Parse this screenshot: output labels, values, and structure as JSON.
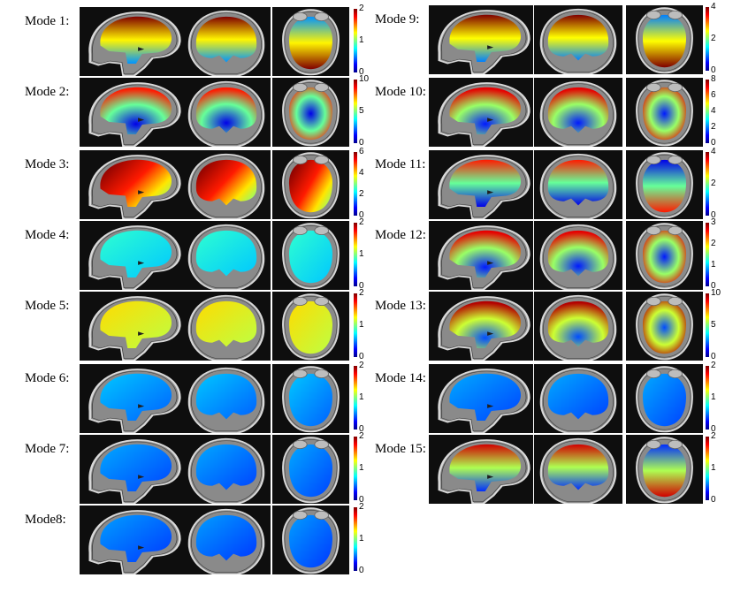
{
  "colormap": {
    "name": "jet",
    "stops": [
      "#00008f",
      "#0000ff",
      "#0080ff",
      "#00ffff",
      "#80ff80",
      "#ffff00",
      "#ff8000",
      "#ff0000",
      "#800000"
    ]
  },
  "modes": [
    {
      "label": "Mode 1:",
      "level": 0.72,
      "pattern": "radial-up",
      "ticks": [
        "2",
        "1",
        "0"
      ]
    },
    {
      "label": "Mode 2:",
      "level": 0.55,
      "pattern": "radial",
      "ticks": [
        "10",
        "5",
        "0"
      ]
    },
    {
      "label": "Mode 3:",
      "level": 0.85,
      "pattern": "diagonal",
      "ticks": [
        "6",
        "4",
        "2",
        "0"
      ]
    },
    {
      "label": "Mode 4:",
      "level": 0.38,
      "pattern": "flat",
      "ticks": [
        "2",
        "1",
        "0"
      ]
    },
    {
      "label": "Mode 5:",
      "level": 0.62,
      "pattern": "flat",
      "ticks": [
        "2",
        "1",
        "0"
      ]
    },
    {
      "label": "Mode 6:",
      "level": 0.28,
      "pattern": "flat",
      "ticks": [
        "2",
        "1",
        "0"
      ]
    },
    {
      "label": "Mode 7:",
      "level": 0.25,
      "pattern": "flat",
      "ticks": [
        "2",
        "1",
        "0"
      ]
    },
    {
      "label": "Mode8:",
      "level": 0.24,
      "pattern": "flat",
      "ticks": [
        "2",
        "1",
        "0"
      ]
    },
    {
      "label": "Mode 9:",
      "level": 0.7,
      "pattern": "radial-up",
      "ticks": [
        "4",
        "2",
        "0"
      ]
    },
    {
      "label": "Mode 10:",
      "level": 0.6,
      "pattern": "radial",
      "ticks": [
        "8",
        "6",
        "4",
        "2",
        "0"
      ]
    },
    {
      "label": "Mode 11:",
      "level": 0.55,
      "pattern": "radial-up",
      "ticks": [
        "4",
        "2",
        "0"
      ]
    },
    {
      "label": "Mode 12:",
      "level": 0.6,
      "pattern": "radial",
      "ticks": [
        "3",
        "2",
        "1",
        "0"
      ]
    },
    {
      "label": "Mode 13:",
      "level": 0.65,
      "pattern": "radial",
      "ticks": [
        "10",
        "5",
        "0"
      ]
    },
    {
      "label": "Mode 14:",
      "level": 0.25,
      "pattern": "flat",
      "ticks": [
        "2",
        "1",
        "0"
      ]
    },
    {
      "label": "Mode 15:",
      "level": 0.62,
      "pattern": "radial-up",
      "ticks": [
        "2",
        "1",
        "0"
      ]
    }
  ]
}
